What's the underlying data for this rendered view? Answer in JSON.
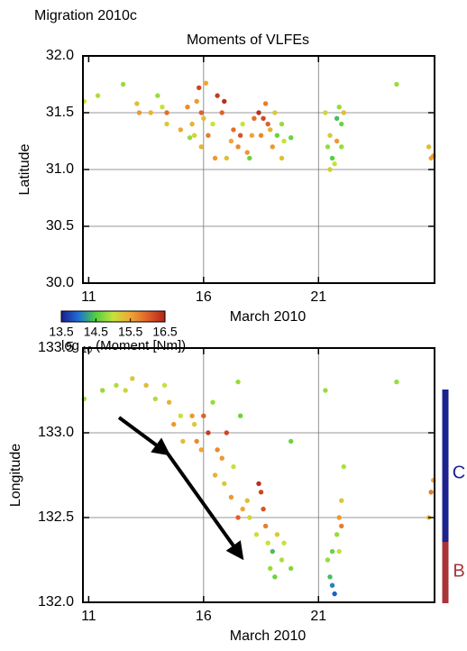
{
  "title": "Migration 2010c",
  "side_labels": [
    "C",
    "B"
  ],
  "chart_data": [
    {
      "type": "scatter",
      "title": "Moments of VLFEs",
      "xlabel": "March 2010",
      "ylabel": "Latitude",
      "xlim": [
        10.75,
        26.05
      ],
      "xticks": [
        11,
        16,
        21
      ],
      "ylim": [
        30.0,
        32.0
      ],
      "yticks": [
        {
          "value": 30.0,
          "label": "30.0"
        },
        30.5,
        {
          "value": 31.0,
          "label": "31.0"
        },
        31.5,
        {
          "value": 32.0,
          "label": "32.0"
        }
      ],
      "xgrid": [
        16,
        21
      ],
      "ygrid": [
        30.5,
        31.0,
        31.5
      ],
      "grid": true,
      "colorbar": {
        "clim": [
          13.5,
          16.5
        ],
        "ticks": [
          13.5,
          14.5,
          15.5,
          16.5
        ],
        "label_parts": [
          "log",
          "10",
          "(Moment [Nm])"
        ],
        "colors": [
          "#1c1c8c",
          "#1f6fd6",
          "#52d040",
          "#c6e23a",
          "#f0a632",
          "#e0602a",
          "#b02418"
        ]
      },
      "x": [
        10.8,
        11.4,
        12.5,
        13.1,
        13.2,
        13.7,
        14.0,
        14.2,
        14.4,
        14.4,
        15.0,
        15.3,
        15.5,
        15.6,
        15.7,
        15.8,
        15.9,
        16.0,
        15.9,
        15.4,
        16.1,
        16.2,
        16.4,
        16.5,
        16.6,
        16.8,
        16.9,
        17.0,
        17.2,
        17.3,
        17.5,
        17.7,
        17.6,
        17.9,
        18.0,
        18.1,
        18.4,
        18.6,
        18.7,
        18.8,
        18.9,
        19.0,
        19.1,
        19.2,
        19.4,
        19.5,
        19.8,
        19.4,
        18.5,
        18.2,
        21.3,
        21.4,
        21.5,
        21.6,
        21.7,
        21.8,
        21.9,
        22.0,
        22.1,
        22.0,
        21.5,
        21.8,
        24.4,
        25.8,
        25.9,
        26.0
      ],
      "y": [
        31.6,
        31.65,
        31.75,
        31.58,
        31.5,
        31.5,
        31.65,
        31.55,
        31.4,
        31.5,
        31.35,
        31.55,
        31.4,
        31.3,
        31.6,
        31.72,
        31.5,
        31.45,
        31.2,
        31.28,
        31.76,
        31.3,
        31.4,
        31.1,
        31.65,
        31.5,
        31.6,
        31.1,
        31.25,
        31.35,
        31.2,
        31.4,
        31.3,
        31.15,
        31.1,
        31.3,
        31.5,
        31.45,
        31.58,
        31.4,
        31.35,
        31.2,
        31.5,
        31.3,
        31.4,
        31.25,
        31.28,
        31.1,
        31.3,
        31.45,
        31.5,
        31.2,
        31.3,
        31.1,
        31.05,
        31.25,
        31.55,
        31.4,
        31.5,
        31.2,
        31.0,
        31.45,
        31.75,
        31.2,
        31.1,
        31.12
      ],
      "moment": [
        15.0,
        14.9,
        14.8,
        15.3,
        15.6,
        15.4,
        14.8,
        15.0,
        15.2,
        15.9,
        15.5,
        15.7,
        15.4,
        15.1,
        15.6,
        16.2,
        16.0,
        15.3,
        15.4,
        14.8,
        15.5,
        15.8,
        15.0,
        15.6,
        16.3,
        16.0,
        16.4,
        15.3,
        15.5,
        15.9,
        15.7,
        15.0,
        16.1,
        15.6,
        14.6,
        15.5,
        16.4,
        16.2,
        15.8,
        16.0,
        15.4,
        15.6,
        15.2,
        14.6,
        14.8,
        15.0,
        14.6,
        15.3,
        15.7,
        15.9,
        15.1,
        14.8,
        15.2,
        14.5,
        15.0,
        15.6,
        14.8,
        14.6,
        15.3,
        14.8,
        15.2,
        14.4,
        14.8,
        15.3,
        15.5,
        15.6
      ]
    },
    {
      "type": "scatter",
      "xlabel": "March 2010",
      "ylabel": "Longitude",
      "xlim": [
        10.75,
        26.05
      ],
      "xticks": [
        11,
        16,
        21
      ],
      "ylim": [
        132.0,
        133.5
      ],
      "yticks": [
        {
          "value": 132.0,
          "label": "132.0"
        },
        132.5,
        {
          "value": 133.0,
          "label": "133.0"
        },
        133.5
      ],
      "xgrid": [
        16,
        21
      ],
      "ygrid": [
        132.5,
        133.0
      ],
      "grid": true,
      "x": [
        10.8,
        11.6,
        12.2,
        12.6,
        12.9,
        13.5,
        13.9,
        14.3,
        14.5,
        14.7,
        15.0,
        15.1,
        15.5,
        15.6,
        15.7,
        15.9,
        16.0,
        16.2,
        16.4,
        16.5,
        16.6,
        16.8,
        16.9,
        17.0,
        17.2,
        17.3,
        17.5,
        17.6,
        17.7,
        17.5,
        17.9,
        18.0,
        18.3,
        18.4,
        18.5,
        18.6,
        18.7,
        18.8,
        18.9,
        19.0,
        19.1,
        19.2,
        19.4,
        19.5,
        19.8,
        19.8,
        21.3,
        21.4,
        21.5,
        21.6,
        21.6,
        21.7,
        21.8,
        21.9,
        22.0,
        22.1,
        21.9,
        22.0,
        24.4,
        25.8,
        25.9,
        26.0
      ],
      "y": [
        133.2,
        133.25,
        133.28,
        133.25,
        133.32,
        133.28,
        133.2,
        133.28,
        133.18,
        133.05,
        133.1,
        132.95,
        133.1,
        133.05,
        132.95,
        132.9,
        133.1,
        133.0,
        133.18,
        132.75,
        132.9,
        132.85,
        132.7,
        133.0,
        132.62,
        132.8,
        133.3,
        133.1,
        132.55,
        132.5,
        132.6,
        132.5,
        132.4,
        132.7,
        132.65,
        132.55,
        132.45,
        132.35,
        132.2,
        132.3,
        132.15,
        132.4,
        132.25,
        132.35,
        132.2,
        132.95,
        133.25,
        132.25,
        132.15,
        132.3,
        132.1,
        132.05,
        132.4,
        132.5,
        132.6,
        132.8,
        132.3,
        132.45,
        133.3,
        132.5,
        132.65,
        132.72
      ],
      "moment": [
        14.8,
        14.8,
        14.9,
        15.1,
        15.2,
        15.3,
        14.9,
        15.0,
        15.4,
        15.6,
        15.0,
        15.3,
        15.6,
        15.2,
        15.7,
        15.5,
        16.0,
        16.3,
        14.8,
        15.4,
        15.7,
        15.6,
        15.2,
        16.2,
        15.6,
        15.0,
        14.8,
        14.6,
        15.5,
        16.0,
        15.3,
        15.1,
        15.0,
        16.4,
        16.2,
        16.1,
        15.8,
        15.0,
        14.8,
        14.4,
        14.6,
        15.2,
        14.9,
        15.0,
        14.7,
        14.6,
        14.8,
        14.8,
        14.4,
        14.6,
        14.1,
        13.9,
        14.8,
        15.6,
        15.2,
        14.9,
        15.0,
        15.8,
        14.8,
        15.3,
        15.8,
        15.5
      ]
    }
  ]
}
